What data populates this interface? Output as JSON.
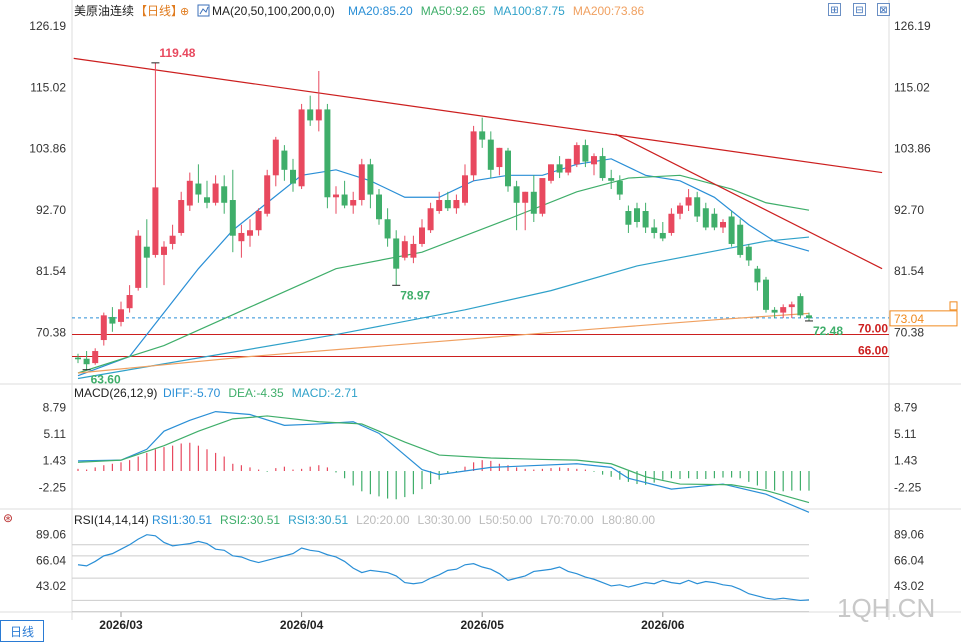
{
  "title": "美原油连续",
  "period_tag": "【日线】",
  "ma_label": "MA(20,50,100,200,0,0)",
  "ma_values": [
    {
      "text": "MA20:85.20",
      "color": "#2a8fd6"
    },
    {
      "text": "MA50:92.65",
      "color": "#3fae6a"
    },
    {
      "text": "MA100:87.75",
      "color": "#2fa1c9"
    },
    {
      "text": "MA200:73.86",
      "color": "#f0a060"
    }
  ],
  "macd_label": "MACD(26,12,9)",
  "macd_values": [
    {
      "text": "DIFF:-5.70",
      "color": "#2a8fd6"
    },
    {
      "text": "DEA:-4.35",
      "color": "#3fae6a"
    },
    {
      "text": "MACD:-2.71",
      "color": "#2fa1c9"
    }
  ],
  "rsi_label": "RSI(14,14,14)",
  "rsi_values": [
    {
      "text": "RSI1:30.51",
      "color": "#2a8fd6"
    },
    {
      "text": "RSI2:30.51",
      "color": "#3fae6a"
    },
    {
      "text": "RSI3:30.51",
      "color": "#2fa1c9"
    },
    {
      "text": "L20:20.00",
      "color": "#bbbbbb"
    },
    {
      "text": "L30:30.00",
      "color": "#bbbbbb"
    },
    {
      "text": "L50:50.00",
      "color": "#bbbbbb"
    },
    {
      "text": "L70:70.00",
      "color": "#bbbbbb"
    },
    {
      "text": "L80:80.00",
      "color": "#bbbbbb"
    }
  ],
  "watermark": "1QH.CN",
  "bottom_tab": "日线",
  "controls": [
    "⊞",
    "⊟",
    "⊠"
  ],
  "colors": {
    "up": "#e8495f",
    "down": "#3fae6a",
    "trend": "#cc1f1f",
    "ma20": "#2a8fd6",
    "ma50": "#3fae6a",
    "ma100": "#2fa1c9",
    "ma200": "#f0a060",
    "rsi": "#2a8fd6"
  },
  "chart_data": {
    "type": "candlestick",
    "x_ticks": [
      "2026/03",
      "2026/04",
      "2026/05",
      "2026/06"
    ],
    "x_tick_index": [
      5,
      26,
      47,
      68
    ],
    "price_axis": {
      "ticks": [
        "126.19",
        "115.02",
        "103.86",
        "92.70",
        "81.54",
        "70.38"
      ],
      "ylim": [
        63.0,
        126.19
      ]
    },
    "candles": [
      {
        "o": 65.8,
        "h": 66.5,
        "l": 64.8,
        "c": 65.5
      },
      {
        "o": 65.6,
        "h": 67.0,
        "l": 63.6,
        "c": 64.6
      },
      {
        "o": 64.8,
        "h": 67.5,
        "l": 64.5,
        "c": 67.0
      },
      {
        "o": 69.0,
        "h": 74.0,
        "l": 68.0,
        "c": 73.5
      },
      {
        "o": 73.2,
        "h": 75.0,
        "l": 70.5,
        "c": 72.0
      },
      {
        "o": 72.3,
        "h": 76.0,
        "l": 71.5,
        "c": 74.6
      },
      {
        "o": 74.8,
        "h": 79.0,
        "l": 74.0,
        "c": 77.2
      },
      {
        "o": 78.5,
        "h": 89.0,
        "l": 78.0,
        "c": 88.0
      },
      {
        "o": 86.0,
        "h": 91.0,
        "l": 78.5,
        "c": 84.0
      },
      {
        "o": 84.5,
        "h": 119.48,
        "l": 84.0,
        "c": 96.8
      },
      {
        "o": 84.5,
        "h": 87.0,
        "l": 79.0,
        "c": 86.0
      },
      {
        "o": 86.5,
        "h": 90.0,
        "l": 85.5,
        "c": 88.0
      },
      {
        "o": 88.5,
        "h": 96.0,
        "l": 88.0,
        "c": 94.5
      },
      {
        "o": 93.5,
        "h": 99.5,
        "l": 92.5,
        "c": 98.0
      },
      {
        "o": 97.5,
        "h": 101.0,
        "l": 94.0,
        "c": 95.5
      },
      {
        "o": 95.0,
        "h": 98.0,
        "l": 93.0,
        "c": 94.0
      },
      {
        "o": 94.0,
        "h": 99.0,
        "l": 93.5,
        "c": 97.5
      },
      {
        "o": 97.0,
        "h": 99.0,
        "l": 92.0,
        "c": 94.0
      },
      {
        "o": 94.5,
        "h": 100.0,
        "l": 85.0,
        "c": 88.0
      },
      {
        "o": 87.0,
        "h": 90.0,
        "l": 84.0,
        "c": 88.5
      },
      {
        "o": 88.0,
        "h": 91.0,
        "l": 86.0,
        "c": 89.0
      },
      {
        "o": 89.0,
        "h": 93.0,
        "l": 88.0,
        "c": 92.5
      },
      {
        "o": 92.0,
        "h": 100.0,
        "l": 91.5,
        "c": 99.0
      },
      {
        "o": 99.0,
        "h": 106.0,
        "l": 97.0,
        "c": 105.5
      },
      {
        "o": 103.5,
        "h": 104.5,
        "l": 98.0,
        "c": 100.0
      },
      {
        "o": 100.0,
        "h": 102.0,
        "l": 96.0,
        "c": 97.5
      },
      {
        "o": 97.0,
        "h": 112.0,
        "l": 96.5,
        "c": 111.0
      },
      {
        "o": 111.0,
        "h": 113.5,
        "l": 108.0,
        "c": 109.0
      },
      {
        "o": 109.0,
        "h": 118.0,
        "l": 107.0,
        "c": 111.0
      },
      {
        "o": 111.0,
        "h": 112.0,
        "l": 93.0,
        "c": 95.0
      },
      {
        "o": 95.0,
        "h": 97.0,
        "l": 92.0,
        "c": 95.5
      },
      {
        "o": 95.5,
        "h": 98.0,
        "l": 93.0,
        "c": 93.5
      },
      {
        "o": 93.5,
        "h": 96.0,
        "l": 92.0,
        "c": 94.5
      },
      {
        "o": 94.5,
        "h": 102.0,
        "l": 93.5,
        "c": 101.0
      },
      {
        "o": 101.0,
        "h": 102.0,
        "l": 93.0,
        "c": 95.5
      },
      {
        "o": 95.5,
        "h": 96.5,
        "l": 90.0,
        "c": 91.0
      },
      {
        "o": 91.0,
        "h": 93.0,
        "l": 86.0,
        "c": 87.5
      },
      {
        "o": 87.5,
        "h": 89.0,
        "l": 78.97,
        "c": 82.0
      },
      {
        "o": 84.0,
        "h": 88.0,
        "l": 83.5,
        "c": 87.0
      },
      {
        "o": 84.0,
        "h": 88.0,
        "l": 83.0,
        "c": 86.5
      },
      {
        "o": 86.5,
        "h": 91.0,
        "l": 86.0,
        "c": 89.5
      },
      {
        "o": 89.0,
        "h": 94.0,
        "l": 88.5,
        "c": 93.0
      },
      {
        "o": 92.5,
        "h": 96.0,
        "l": 92.0,
        "c": 94.5
      },
      {
        "o": 94.5,
        "h": 96.0,
        "l": 92.5,
        "c": 93.0
      },
      {
        "o": 93.0,
        "h": 95.5,
        "l": 92.0,
        "c": 94.5
      },
      {
        "o": 94.0,
        "h": 101.0,
        "l": 93.5,
        "c": 99.0
      },
      {
        "o": 99.0,
        "h": 108.0,
        "l": 98.0,
        "c": 107.0
      },
      {
        "o": 107.0,
        "h": 109.5,
        "l": 104.0,
        "c": 105.5
      },
      {
        "o": 105.5,
        "h": 107.0,
        "l": 98.5,
        "c": 100.0
      },
      {
        "o": 100.5,
        "h": 104.0,
        "l": 99.0,
        "c": 104.0
      },
      {
        "o": 103.5,
        "h": 104.0,
        "l": 96.0,
        "c": 97.0
      },
      {
        "o": 97.0,
        "h": 98.0,
        "l": 89.0,
        "c": 94.0
      },
      {
        "o": 94.0,
        "h": 96.0,
        "l": 89.0,
        "c": 96.0
      },
      {
        "o": 96.0,
        "h": 99.0,
        "l": 90.5,
        "c": 92.0
      },
      {
        "o": 92.0,
        "h": 98.0,
        "l": 91.5,
        "c": 98.5
      },
      {
        "o": 98.0,
        "h": 101.0,
        "l": 97.5,
        "c": 101.0
      },
      {
        "o": 101.0,
        "h": 102.5,
        "l": 98.5,
        "c": 99.5
      },
      {
        "o": 99.5,
        "h": 102.0,
        "l": 99.0,
        "c": 102.0
      },
      {
        "o": 101.0,
        "h": 105.0,
        "l": 100.5,
        "c": 104.5
      },
      {
        "o": 104.5,
        "h": 105.5,
        "l": 100.5,
        "c": 101.5
      },
      {
        "o": 101.0,
        "h": 103.0,
        "l": 99.0,
        "c": 102.5
      },
      {
        "o": 102.5,
        "h": 104.0,
        "l": 98.0,
        "c": 98.5
      },
      {
        "o": 98.5,
        "h": 100.0,
        "l": 96.5,
        "c": 98.0
      },
      {
        "o": 98.0,
        "h": 99.0,
        "l": 94.5,
        "c": 95.5
      },
      {
        "o": 92.5,
        "h": 93.5,
        "l": 88.5,
        "c": 90.0
      },
      {
        "o": 93.0,
        "h": 94.0,
        "l": 89.5,
        "c": 90.5
      },
      {
        "o": 92.5,
        "h": 94.0,
        "l": 88.5,
        "c": 89.5
      },
      {
        "o": 89.5,
        "h": 91.0,
        "l": 87.5,
        "c": 88.5
      },
      {
        "o": 88.5,
        "h": 90.5,
        "l": 87.0,
        "c": 87.5
      },
      {
        "o": 88.5,
        "h": 93.0,
        "l": 88.0,
        "c": 92.0
      },
      {
        "o": 92.0,
        "h": 94.0,
        "l": 91.0,
        "c": 93.5
      },
      {
        "o": 93.5,
        "h": 96.5,
        "l": 92.5,
        "c": 95.0
      },
      {
        "o": 95.0,
        "h": 96.0,
        "l": 90.5,
        "c": 91.5
      },
      {
        "o": 93.0,
        "h": 94.0,
        "l": 89.0,
        "c": 89.5
      },
      {
        "o": 92.0,
        "h": 93.0,
        "l": 89.0,
        "c": 89.5
      },
      {
        "o": 89.5,
        "h": 91.0,
        "l": 88.5,
        "c": 90.5
      },
      {
        "o": 91.5,
        "h": 92.5,
        "l": 86.0,
        "c": 86.5
      },
      {
        "o": 90.0,
        "h": 91.0,
        "l": 84.0,
        "c": 84.5
      },
      {
        "o": 86.0,
        "h": 86.5,
        "l": 82.5,
        "c": 83.5
      },
      {
        "o": 82.0,
        "h": 82.5,
        "l": 78.0,
        "c": 79.5
      },
      {
        "o": 80.0,
        "h": 80.5,
        "l": 74.0,
        "c": 74.5
      },
      {
        "o": 74.5,
        "h": 75.0,
        "l": 73.0,
        "c": 74.0
      },
      {
        "o": 74.0,
        "h": 75.5,
        "l": 73.0,
        "c": 75.0
      },
      {
        "o": 75.0,
        "h": 76.0,
        "l": 73.0,
        "c": 75.5
      },
      {
        "o": 77.0,
        "h": 77.5,
        "l": 73.0,
        "c": 73.5
      },
      {
        "o": 73.5,
        "h": 74.0,
        "l": 72.48,
        "c": 73.0
      }
    ],
    "annotations": [
      {
        "text": "119.48",
        "index": 9,
        "value": 119.48,
        "color": "#e8495f",
        "pos": "above"
      },
      {
        "text": "78.97",
        "index": 37,
        "value": 78.97,
        "color": "#3fae6a",
        "pos": "below"
      },
      {
        "text": "63.60",
        "index": 1,
        "value": 63.6,
        "color": "#3fae6a",
        "pos": "below"
      },
      {
        "text": "72.48",
        "index": 85,
        "value": 72.48,
        "color": "#3fae6a",
        "pos": "below"
      }
    ],
    "level_lines": [
      {
        "value": 70.0,
        "label": "70.00",
        "color": "#cc1f1f"
      },
      {
        "value": 66.0,
        "label": "66.00",
        "color": "#cc1f1f"
      }
    ],
    "current_price": {
      "value": 73.04,
      "label": "73.04",
      "color": "#f08a1e"
    },
    "trend_lines": [
      {
        "from": [
          -0.5,
          120.3
        ],
        "to": [
          93.5,
          99.5
        ]
      },
      {
        "from": [
          62.5,
          106.5
        ],
        "to": [
          93.5,
          82.0
        ]
      }
    ],
    "ma_series": [
      {
        "name": "MA20",
        "color": "#2a8fd6",
        "points": [
          [
            0,
            62.5
          ],
          [
            6,
            66
          ],
          [
            10,
            74
          ],
          [
            14,
            82
          ],
          [
            18,
            89
          ],
          [
            22,
            94
          ],
          [
            26,
            99
          ],
          [
            30,
            100
          ],
          [
            34,
            98
          ],
          [
            38,
            95
          ],
          [
            42,
            95
          ],
          [
            46,
            98
          ],
          [
            50,
            99
          ],
          [
            54,
            99
          ],
          [
            58,
            101
          ],
          [
            62,
            102
          ],
          [
            66,
            99
          ],
          [
            70,
            98
          ],
          [
            74,
            95
          ],
          [
            78,
            90
          ],
          [
            81,
            87
          ],
          [
            85,
            85.2
          ]
        ]
      },
      {
        "name": "MA50",
        "color": "#3fae6a",
        "points": [
          [
            0,
            63
          ],
          [
            10,
            68
          ],
          [
            20,
            75
          ],
          [
            30,
            82
          ],
          [
            40,
            85
          ],
          [
            50,
            91
          ],
          [
            58,
            96
          ],
          [
            64,
            98.5
          ],
          [
            70,
            99
          ],
          [
            76,
            96.5
          ],
          [
            80,
            94
          ],
          [
            85,
            92.65
          ]
        ]
      },
      {
        "name": "MA100",
        "color": "#2fa1c9",
        "points": [
          [
            0,
            62
          ],
          [
            15,
            66
          ],
          [
            30,
            70
          ],
          [
            45,
            74.5
          ],
          [
            55,
            78
          ],
          [
            65,
            82.5
          ],
          [
            75,
            85.5
          ],
          [
            80,
            87
          ],
          [
            85,
            87.75
          ]
        ]
      },
      {
        "name": "MA200",
        "color": "#f0a060",
        "points": [
          [
            0,
            63
          ],
          [
            20,
            66
          ],
          [
            40,
            68.5
          ],
          [
            60,
            71
          ],
          [
            75,
            72.8
          ],
          [
            85,
            73.86
          ]
        ]
      }
    ],
    "macd": {
      "ticks": [
        "8.79",
        "5.11",
        "1.43",
        "-2.25"
      ],
      "ylim": [
        -4.0,
        9.8
      ],
      "hist": [
        0.3,
        0.2,
        0.5,
        0.8,
        1.0,
        1.2,
        1.5,
        2.0,
        2.5,
        3.0,
        3.3,
        3.5,
        3.8,
        3.9,
        3.5,
        3.0,
        2.5,
        2.0,
        1.0,
        0.8,
        0.5,
        0.2,
        -0.1,
        0.4,
        0.6,
        0.2,
        0.3,
        0.6,
        0.8,
        0.5,
        -0.2,
        -1.0,
        -2.0,
        -2.8,
        -3.2,
        -3.5,
        -3.8,
        -3.9,
        -3.6,
        -3.2,
        -2.5,
        -1.8,
        -1.2,
        -0.3,
        -0.2,
        0.6,
        1.2,
        1.5,
        1.4,
        1.0,
        0.8,
        0.5,
        0.3,
        0.2,
        0.3,
        0.4,
        0.5,
        0.4,
        0.3,
        0.2,
        -0.1,
        -0.5,
        -0.8,
        -1.2,
        -1.5,
        -1.8,
        -1.9,
        -1.6,
        -1.2,
        -1.0,
        -1.1,
        -1.0,
        -1.1,
        -1.1,
        -1.0,
        -0.9,
        -0.9,
        -1.0,
        -1.5,
        -2.0,
        -2.5,
        -2.7,
        -2.8,
        -2.7,
        -2.7,
        -2.71
      ],
      "diff": [
        [
          0,
          1.4
        ],
        [
          5,
          1.5
        ],
        [
          8,
          3
        ],
        [
          10,
          5.5
        ],
        [
          13,
          7
        ],
        [
          16,
          8.2
        ],
        [
          20,
          7.8
        ],
        [
          24,
          6.3
        ],
        [
          28,
          6.5
        ],
        [
          32,
          6.8
        ],
        [
          35,
          5.2
        ],
        [
          40,
          0.2
        ],
        [
          42,
          -0.5
        ],
        [
          48,
          0.5
        ],
        [
          52,
          0.7
        ],
        [
          58,
          1.0
        ],
        [
          62,
          0.5
        ],
        [
          64,
          -1.0
        ],
        [
          69,
          -2.5
        ],
        [
          75,
          -1.8
        ],
        [
          80,
          -3.2
        ],
        [
          85,
          -5.7
        ]
      ],
      "dea": [
        [
          0,
          1.2
        ],
        [
          5,
          1.5
        ],
        [
          10,
          3.5
        ],
        [
          14,
          5.5
        ],
        [
          18,
          7.2
        ],
        [
          22,
          7.6
        ],
        [
          28,
          6.8
        ],
        [
          33,
          6.5
        ],
        [
          38,
          4.0
        ],
        [
          42,
          2.2
        ],
        [
          48,
          1.8
        ],
        [
          54,
          1.6
        ],
        [
          58,
          1.5
        ],
        [
          62,
          1.0
        ],
        [
          66,
          -0.8
        ],
        [
          70,
          -1.8
        ],
        [
          76,
          -1.9
        ],
        [
          80,
          -2.7
        ],
        [
          85,
          -4.35
        ]
      ]
    },
    "rsi": {
      "ticks": [
        "89.06",
        "66.04",
        "43.02"
      ],
      "ylim": [
        25,
        95
      ],
      "levels": [
        80,
        70,
        50,
        30,
        20
      ],
      "values": [
        62,
        61,
        65,
        70,
        72,
        76,
        80,
        85,
        89,
        88,
        82,
        79,
        80,
        81,
        83,
        81,
        76,
        75,
        70,
        69,
        66,
        64,
        66,
        68,
        70,
        72,
        77,
        75,
        74,
        71,
        69,
        65,
        59,
        55,
        57,
        56,
        55,
        52,
        46,
        45,
        46,
        50,
        53,
        57,
        58,
        62,
        63,
        60,
        58,
        54,
        48,
        50,
        52,
        56,
        57,
        58,
        60,
        56,
        54,
        51,
        49,
        46,
        43,
        44,
        42,
        44,
        46,
        45,
        48,
        46,
        45,
        48,
        45,
        47,
        46,
        44,
        43,
        40,
        36,
        34,
        32,
        31,
        32,
        31,
        30,
        30.51
      ]
    }
  }
}
